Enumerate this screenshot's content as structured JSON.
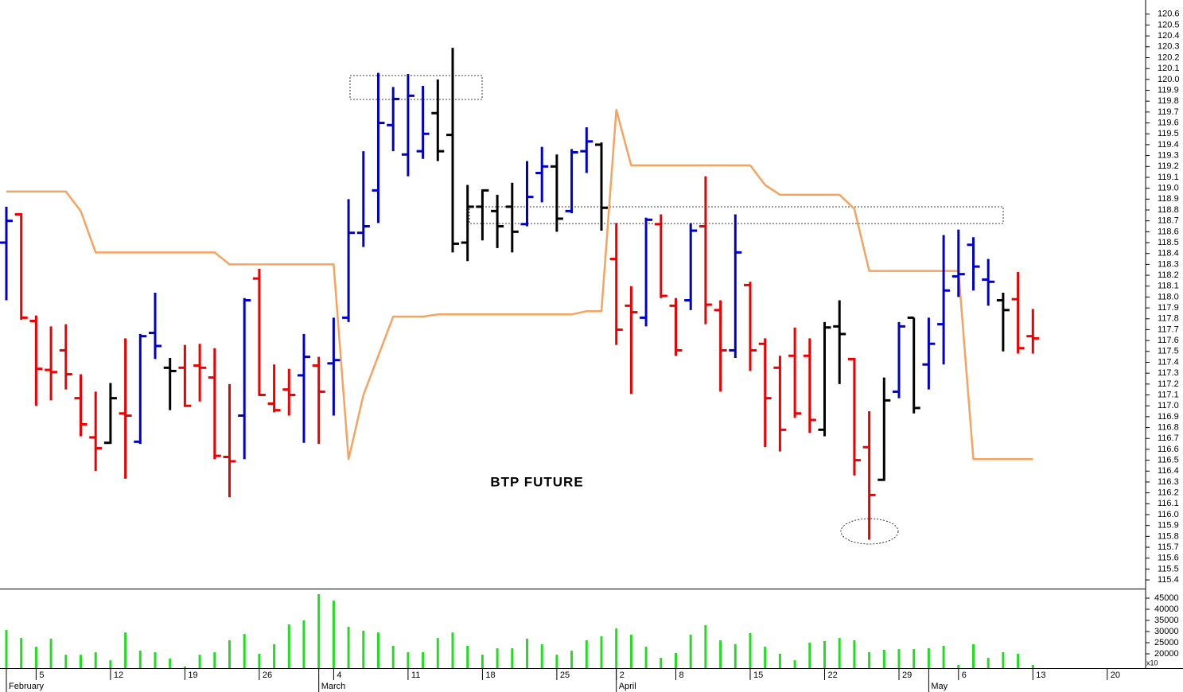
{
  "chart_data": [
    {
      "type": "ohlc",
      "title": "BTP FUTURE",
      "ylim": [
        115.32,
        120.73
      ],
      "yticks": [
        115.4,
        115.5,
        115.6,
        115.7,
        115.8,
        115.9,
        {
          "value": 116,
          "label": "116.0"
        },
        116.1,
        116.2,
        116.3,
        116.4,
        116.5,
        116.6,
        116.7,
        116.8,
        116.9,
        {
          "value": 117,
          "label": "117.0"
        },
        117.1,
        117.2,
        117.3,
        117.4,
        117.5,
        117.6,
        117.7,
        117.8,
        117.9,
        {
          "value": 118,
          "label": "118.0"
        },
        118.1,
        118.2,
        118.3,
        118.4,
        118.5,
        118.6,
        118.7,
        118.8,
        118.9,
        {
          "value": 119,
          "label": "119.0"
        },
        119.1,
        119.2,
        119.3,
        119.4,
        119.5,
        119.6,
        119.7,
        119.8,
        119.9,
        {
          "value": 120,
          "label": "120.0"
        },
        120.1,
        120.2,
        120.3,
        120.4,
        120.5,
        120.6
      ],
      "xticks": [
        {
          "value": 2,
          "label": "5"
        },
        {
          "value": 7,
          "label": "12"
        },
        {
          "value": 12,
          "label": "19"
        },
        {
          "value": 17,
          "label": "26"
        },
        {
          "value": 22,
          "label": "4"
        },
        {
          "value": 27,
          "label": "11"
        },
        {
          "value": 32,
          "label": "18"
        },
        {
          "value": 37,
          "label": "25"
        },
        {
          "value": 41,
          "label": "2"
        },
        {
          "value": 45,
          "label": "8"
        },
        {
          "value": 50,
          "label": "15"
        },
        {
          "value": 55,
          "label": "22"
        },
        {
          "value": 60,
          "label": "29"
        },
        {
          "value": 64,
          "label": "6"
        },
        {
          "value": 69,
          "label": "13"
        },
        {
          "value": 74,
          "label": "20"
        }
      ],
      "month_ticks": [
        {
          "value": 0,
          "label": "February"
        },
        {
          "value": 21,
          "label": "March"
        },
        {
          "value": 41,
          "label": "April"
        },
        {
          "value": 62,
          "label": "May"
        }
      ],
      "open": [
        118.5,
        118.76,
        117.78,
        117.33,
        117.51,
        117.07,
        116.71,
        116.66,
        116.93,
        116.67,
        117.67,
        117.35,
        117.35,
        117.37,
        117.26,
        116.53,
        116.91,
        118.17,
        117.02,
        117.15,
        117.28,
        117.37,
        117.39,
        117.81,
        118.59,
        118.98,
        119.58,
        119.31,
        119.34,
        119.69,
        119.49,
        118.5,
        118.83,
        118.79,
        118.83,
        118.67,
        119.14,
        119.2,
        118.79,
        119.34,
        119.4,
        118.35,
        117.92,
        117.81,
        118.67,
        117.92,
        117.97,
        118.65,
        117.88,
        117.51,
        118.11,
        117.57,
        117.35,
        117.46,
        117.46,
        116.78,
        117.73,
        117.43,
        116.62,
        116.32,
        117.13,
        117.81,
        117.38,
        117.75,
        118.19,
        118.48,
        118.16,
        117.97,
        117.98,
        117.64
      ],
      "high": [
        118.83,
        118.77,
        117.83,
        117.73,
        117.75,
        117.29,
        117.13,
        117.21,
        117.62,
        117.66,
        118.04,
        117.44,
        117.56,
        117.57,
        117.53,
        117.2,
        117.99,
        118.26,
        117.38,
        117.34,
        117.66,
        117.45,
        117.81,
        118.9,
        119.34,
        120.06,
        119.93,
        120.05,
        119.94,
        120.0,
        120.29,
        119.03,
        118.99,
        118.94,
        119.05,
        119.25,
        119.38,
        119.31,
        119.36,
        119.56,
        119.42,
        118.68,
        118.1,
        118.73,
        118.76,
        117.99,
        118.68,
        119.11,
        117.97,
        118.76,
        118.14,
        117.62,
        117.46,
        117.72,
        117.62,
        117.77,
        117.97,
        117.44,
        116.95,
        117.26,
        117.77,
        117.81,
        117.81,
        118.57,
        118.62,
        118.55,
        118.35,
        118.04,
        118.23,
        117.89
      ],
      "low": [
        117.97,
        117.79,
        117.0,
        117.05,
        117.15,
        116.72,
        116.4,
        116.65,
        116.33,
        116.65,
        117.43,
        116.96,
        116.99,
        117.04,
        116.51,
        116.16,
        116.51,
        117.09,
        116.94,
        116.91,
        116.66,
        116.65,
        116.91,
        117.77,
        118.46,
        118.68,
        119.34,
        119.11,
        119.27,
        119.25,
        118.41,
        118.33,
        118.52,
        118.45,
        118.41,
        118.65,
        118.87,
        118.6,
        118.77,
        119.14,
        118.61,
        117.56,
        117.11,
        117.73,
        117.99,
        117.46,
        117.88,
        117.75,
        117.13,
        117.44,
        117.32,
        116.62,
        116.58,
        116.89,
        116.75,
        116.72,
        117.2,
        116.36,
        115.77,
        116.31,
        117.07,
        116.93,
        117.15,
        117.38,
        118.0,
        118.06,
        117.92,
        117.5,
        117.48,
        117.48
      ],
      "close": [
        118.7,
        117.81,
        117.34,
        117.31,
        117.29,
        116.83,
        116.61,
        117.07,
        116.91,
        117.64,
        117.55,
        117.32,
        117.0,
        117.35,
        116.54,
        116.49,
        117.97,
        117.1,
        116.96,
        117.1,
        117.45,
        117.13,
        117.42,
        118.59,
        118.65,
        119.6,
        119.82,
        119.85,
        119.5,
        119.34,
        118.49,
        118.83,
        118.98,
        118.65,
        118.6,
        118.92,
        119.2,
        118.72,
        119.33,
        119.43,
        118.82,
        117.7,
        117.86,
        118.71,
        118.01,
        117.51,
        118.61,
        117.93,
        117.51,
        118.41,
        117.51,
        117.07,
        116.78,
        116.93,
        116.87,
        117.72,
        117.66,
        116.5,
        116.18,
        117.05,
        117.73,
        116.98,
        117.57,
        118.06,
        118.21,
        118.28,
        118.14,
        117.88,
        117.53,
        117.62
      ],
      "bar_colors": [
        "#0000cc",
        "#ee0000",
        "#ee0000",
        "#ee0000",
        "#ee0000",
        "#ee0000",
        "#ee0000",
        "#000000",
        "#ee0000",
        "#0000cc",
        "#0000cc",
        "#000000",
        "#ee0000",
        "#ee0000",
        "#ee0000",
        "#ee0000",
        "#0000cc",
        "#ee0000",
        "#ee0000",
        "#ee0000",
        "#0000cc",
        "#ee0000",
        "#0000cc",
        "#0000cc",
        "#0000cc",
        "#0000cc",
        "#0000cc",
        "#0000cc",
        "#0000cc",
        "#000000",
        "#000000",
        "#000000",
        "#000000",
        "#000000",
        "#000000",
        "#0000cc",
        "#0000cc",
        "#000000",
        "#0000cc",
        "#0000cc",
        "#000000",
        "#ee0000",
        "#ee0000",
        "#0000cc",
        "#ee0000",
        "#ee0000",
        "#0000cc",
        "#ee0000",
        "#ee0000",
        "#0000cc",
        "#ee0000",
        "#ee0000",
        "#ee0000",
        "#ee0000",
        "#ee0000",
        "#000000",
        "#000000",
        "#ee0000",
        "#ee0000",
        "#000000",
        "#0000cc",
        "#000000",
        "#0000cc",
        "#0000cc",
        "#0000cc",
        "#0000cc",
        "#0000cc",
        "#000000",
        "#ee0000",
        "#ee0000"
      ],
      "line": {
        "color": "#f5a35f",
        "values": [
          118.97,
          118.97,
          118.97,
          118.97,
          118.97,
          118.79,
          118.41,
          118.41,
          118.41,
          118.41,
          118.41,
          118.41,
          118.41,
          118.41,
          118.41,
          118.3,
          118.3,
          118.3,
          118.3,
          118.3,
          118.3,
          118.3,
          118.3,
          116.51,
          117.1,
          117.46,
          117.82,
          117.82,
          117.82,
          117.84,
          117.84,
          117.84,
          117.84,
          117.84,
          117.84,
          117.84,
          117.84,
          117.84,
          117.84,
          117.87,
          117.87,
          119.72,
          119.21,
          119.21,
          119.21,
          119.21,
          119.21,
          119.21,
          119.21,
          119.21,
          119.21,
          119.03,
          118.94,
          118.94,
          118.94,
          118.94,
          118.94,
          118.81,
          118.24,
          118.24,
          118.24,
          118.24,
          118.24,
          118.24,
          118.24,
          116.51,
          116.51,
          116.51,
          116.51,
          116.51
        ]
      }
    },
    {
      "type": "bar",
      "color": "#22dd22",
      "multiplier_label": "x10",
      "ylim": [
        13571,
        48929
      ],
      "yticks": [
        20000,
        25000,
        30000,
        35000,
        40000,
        45000
      ],
      "values": [
        30700,
        27100,
        23200,
        26800,
        19600,
        19600,
        20700,
        17100,
        29600,
        21400,
        20700,
        17900,
        14300,
        19600,
        20700,
        26100,
        28900,
        20000,
        24300,
        33200,
        35000,
        46800,
        43900,
        32100,
        30400,
        29600,
        23600,
        20700,
        20700,
        27100,
        29600,
        23600,
        19600,
        22500,
        22500,
        26800,
        24300,
        19600,
        21400,
        26100,
        27900,
        31400,
        28600,
        23200,
        18200,
        20400,
        28600,
        32900,
        26100,
        24300,
        29300,
        23200,
        20000,
        17100,
        25000,
        25700,
        27100,
        26100,
        20700,
        21800,
        22100,
        22100,
        22500,
        23600,
        15000,
        24300,
        18200,
        20700,
        20000,
        15000
      ]
    }
  ]
}
